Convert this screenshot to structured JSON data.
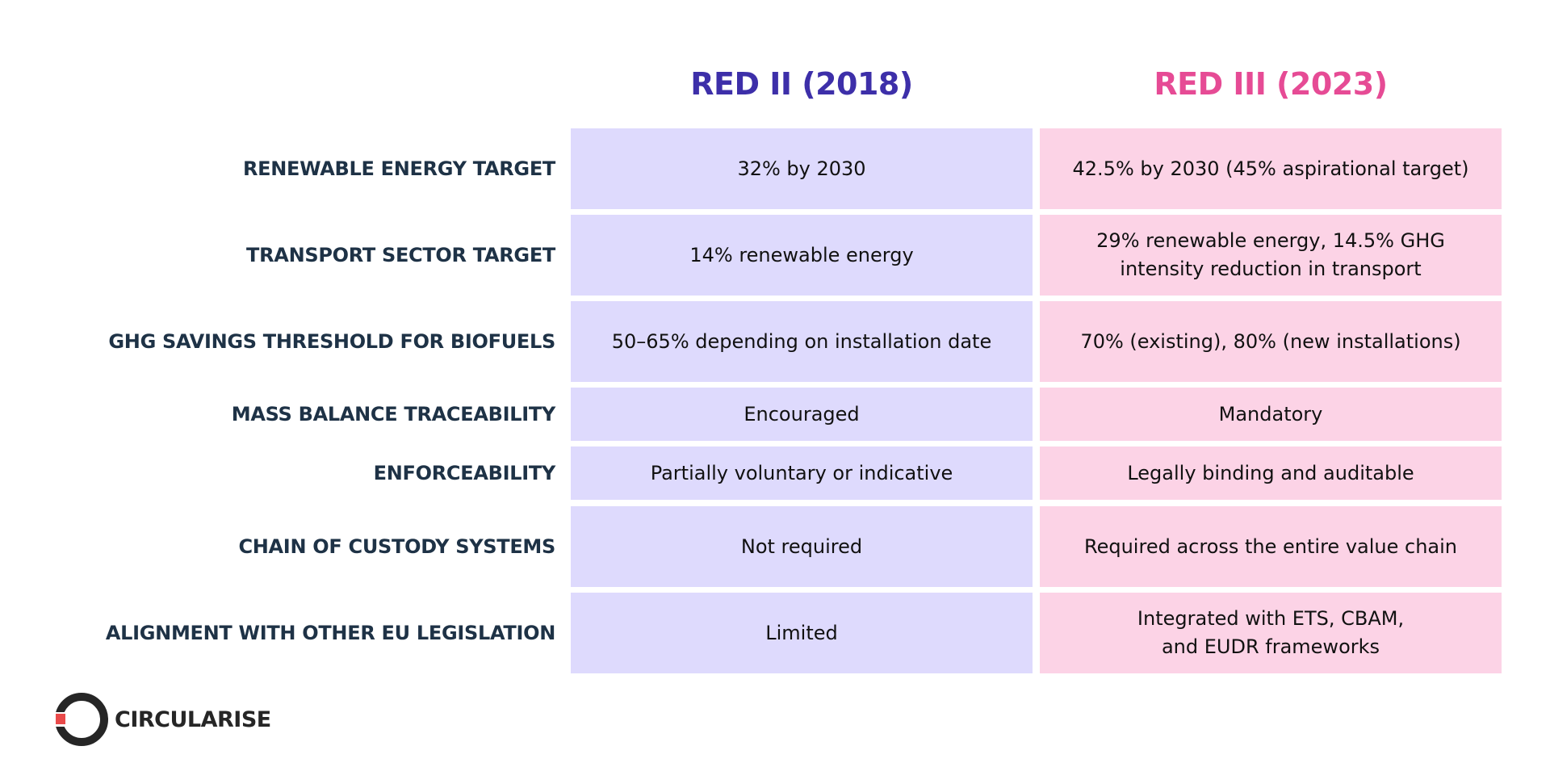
{
  "headers": {
    "red2": "RED II (2018)",
    "red3": "RED III (2023)"
  },
  "rows": [
    {
      "label": "RENEWABLE ENERGY TARGET",
      "red2": "32% by 2030",
      "red3": "42.5% by 2030 (45% aspirational target)"
    },
    {
      "label": "TRANSPORT SECTOR TARGET",
      "red2": "14% renewable energy",
      "red3": "29% renewable energy, 14.5% GHG\nintensity reduction in transport"
    },
    {
      "label": "GHG SAVINGS THRESHOLD FOR BIOFUELS",
      "red2": "50–65% depending on installation date",
      "red3": "70% (existing), 80% (new installations)"
    },
    {
      "label": "MASS BALANCE TRACEABILITY",
      "red2": "Encouraged",
      "red3": "Mandatory"
    },
    {
      "label": "ENFORCEABILITY",
      "red2": "Partially voluntary or indicative",
      "red3": "Legally binding and auditable"
    },
    {
      "label": "CHAIN OF CUSTODY SYSTEMS",
      "red2": "Not required",
      "red3": "Required across the entire value chain"
    },
    {
      "label": "ALIGNMENT WITH OTHER EU LEGISLATION",
      "red2": "Limited",
      "red3": "Integrated with ETS, CBAM,\nand EUDR frameworks"
    }
  ],
  "logo": {
    "text": "CIRCULARISE"
  },
  "colors": {
    "red2_header": "#3d2fa9",
    "red3_header": "#e64b95",
    "red2_cell": "#dedafd",
    "red3_cell": "#fcd3e6",
    "row_label": "#1e3246",
    "cell_text": "#111111",
    "logo_ring": "#262626",
    "logo_accent": "#e94a4a"
  }
}
